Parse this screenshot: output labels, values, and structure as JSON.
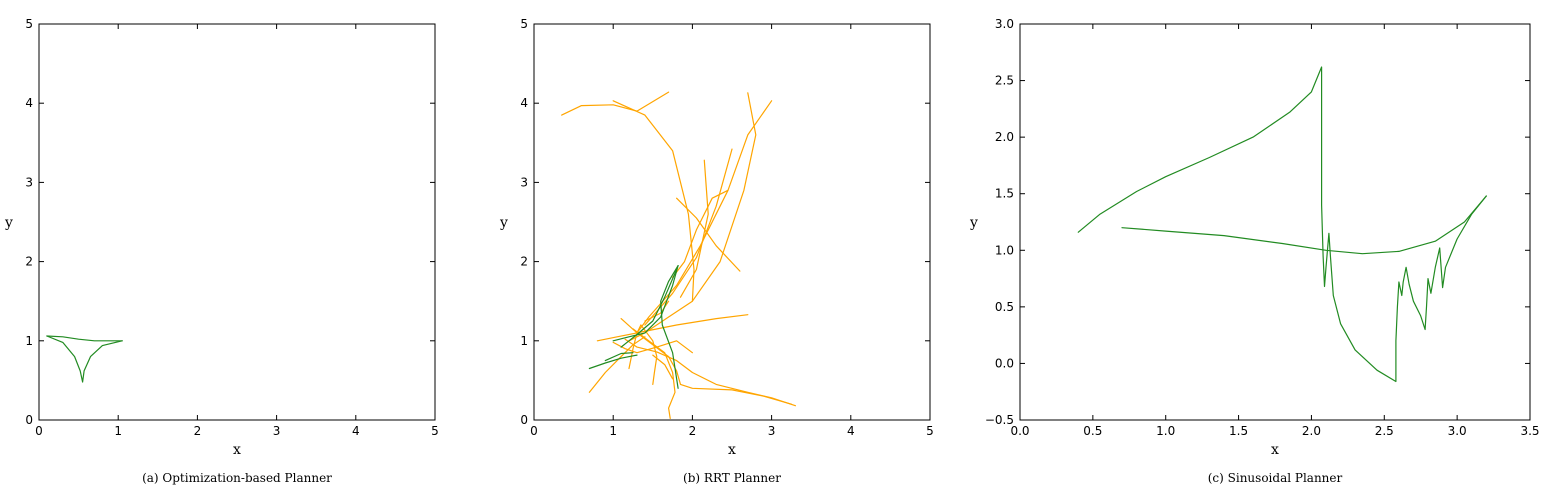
{
  "chart_data": [
    {
      "type": "line",
      "caption": "(a) Optimization-based Planner",
      "xlabel": "x",
      "ylabel": "y",
      "xlim": [
        0,
        5
      ],
      "ylim": [
        0,
        5
      ],
      "xticks": [
        0,
        1,
        2,
        3,
        4,
        5
      ],
      "yticks": [
        0,
        1,
        2,
        3,
        4,
        5
      ],
      "xtick_labels": [
        "0",
        "1",
        "2",
        "3",
        "4",
        "5"
      ],
      "ytick_labels": [
        "0",
        "1",
        "2",
        "3",
        "4",
        "5"
      ],
      "grid": false,
      "series": [
        {
          "color": "#228b22",
          "points": [
            [
              0.1,
              1.06
            ],
            [
              0.3,
              0.98
            ],
            [
              0.45,
              0.8
            ],
            [
              0.52,
              0.62
            ],
            [
              0.55,
              0.48
            ],
            [
              0.57,
              0.62
            ],
            [
              0.65,
              0.8
            ],
            [
              0.8,
              0.94
            ],
            [
              1.05,
              1.0
            ]
          ]
        },
        {
          "color": "#228b22",
          "points": [
            [
              0.1,
              1.06
            ],
            [
              0.3,
              1.05
            ],
            [
              0.5,
              1.02
            ],
            [
              0.7,
              1.0
            ],
            [
              1.05,
              1.0
            ]
          ]
        }
      ]
    },
    {
      "type": "line",
      "caption": "(b) RRT Planner",
      "xlabel": "x",
      "ylabel": "y",
      "xlim": [
        0,
        5
      ],
      "ylim": [
        0,
        5
      ],
      "xticks": [
        0,
        1,
        2,
        3,
        4,
        5
      ],
      "yticks": [
        0,
        1,
        2,
        3,
        4,
        5
      ],
      "xtick_labels": [
        "0",
        "1",
        "2",
        "3",
        "4",
        "5"
      ],
      "ytick_labels": [
        "0",
        "1",
        "2",
        "3",
        "4",
        "5"
      ],
      "grid": false,
      "series": [
        {
          "color": "#ffa500",
          "points": [
            [
              0.35,
              3.85
            ],
            [
              0.6,
              3.97
            ],
            [
              1.0,
              3.98
            ],
            [
              1.3,
              3.9
            ],
            [
              1.7,
              4.14
            ]
          ]
        },
        {
          "color": "#ffa500",
          "points": [
            [
              1.0,
              4.03
            ],
            [
              1.4,
              3.85
            ],
            [
              1.75,
              3.4
            ],
            [
              1.95,
              2.6
            ],
            [
              2.02,
              1.9
            ],
            [
              2.0,
              1.5
            ]
          ]
        },
        {
          "color": "#ffa500",
          "points": [
            [
              2.7,
              4.13
            ],
            [
              2.8,
              3.6
            ],
            [
              2.65,
              2.9
            ],
            [
              2.35,
              2.0
            ],
            [
              2.0,
              1.5
            ],
            [
              1.7,
              1.3
            ],
            [
              1.4,
              1.1
            ],
            [
              1.2,
              1.0
            ]
          ]
        },
        {
          "color": "#ffa500",
          "points": [
            [
              3.0,
              4.03
            ],
            [
              2.7,
              3.6
            ],
            [
              2.45,
              2.9
            ],
            [
              2.1,
              2.2
            ],
            [
              1.8,
              1.7
            ],
            [
              1.45,
              1.3
            ],
            [
              1.3,
              1.1
            ]
          ]
        },
        {
          "color": "#ffa500",
          "points": [
            [
              2.5,
              3.42
            ],
            [
              2.3,
              2.7
            ],
            [
              2.05,
              2.05
            ],
            [
              1.75,
              1.6
            ],
            [
              1.4,
              1.2
            ]
          ]
        },
        {
          "color": "#ffa500",
          "points": [
            [
              2.15,
              3.28
            ],
            [
              2.2,
              2.6
            ],
            [
              2.05,
              1.9
            ],
            [
              1.85,
              1.55
            ]
          ]
        },
        {
          "color": "#ffa500",
          "points": [
            [
              1.8,
              2.8
            ],
            [
              2.05,
              2.55
            ],
            [
              2.3,
              2.2
            ],
            [
              2.6,
              1.88
            ]
          ]
        },
        {
          "color": "#ffa500",
          "points": [
            [
              1.75,
              1.8
            ],
            [
              1.9,
              2.0
            ],
            [
              2.05,
              2.4
            ],
            [
              2.25,
              2.8
            ],
            [
              2.45,
              2.9
            ]
          ]
        },
        {
          "color": "#ffa500",
          "points": [
            [
              0.8,
              1.0
            ],
            [
              1.05,
              1.05
            ],
            [
              1.3,
              1.1
            ],
            [
              1.8,
              1.2
            ],
            [
              2.3,
              1.28
            ],
            [
              2.7,
              1.33
            ]
          ]
        },
        {
          "color": "#ffa500",
          "points": [
            [
              1.1,
              1.28
            ],
            [
              1.3,
              1.1
            ],
            [
              1.5,
              0.95
            ],
            [
              1.7,
              0.8
            ],
            [
              1.8,
              0.62
            ],
            [
              1.85,
              0.45
            ],
            [
              2.0,
              0.4
            ],
            [
              2.5,
              0.38
            ],
            [
              2.9,
              0.3
            ],
            [
              3.25,
              0.2
            ]
          ]
        },
        {
          "color": "#ffa500",
          "points": [
            [
              1.25,
              1.15
            ],
            [
              1.45,
              1.0
            ],
            [
              1.65,
              0.85
            ],
            [
              1.75,
              0.6
            ],
            [
              1.78,
              0.35
            ],
            [
              1.7,
              0.15
            ],
            [
              1.72,
              0.02
            ]
          ]
        },
        {
          "color": "#ffa500",
          "points": [
            [
              1.35,
              1.2
            ],
            [
              1.5,
              1.0
            ],
            [
              1.55,
              0.8
            ],
            [
              1.52,
              0.6
            ],
            [
              1.5,
              0.45
            ]
          ]
        },
        {
          "color": "#ffa500",
          "points": [
            [
              1.15,
              1.02
            ],
            [
              1.3,
              0.92
            ],
            [
              1.55,
              0.86
            ],
            [
              1.8,
              0.75
            ],
            [
              2.0,
              0.6
            ],
            [
              2.3,
              0.45
            ],
            [
              2.7,
              0.35
            ],
            [
              3.0,
              0.28
            ],
            [
              3.3,
              0.18
            ]
          ]
        },
        {
          "color": "#ffa500",
          "points": [
            [
              1.0,
              0.98
            ],
            [
              1.15,
              0.9
            ],
            [
              1.3,
              0.85
            ],
            [
              1.55,
              0.92
            ],
            [
              1.8,
              1.0
            ],
            [
              2.0,
              0.85
            ]
          ]
        },
        {
          "color": "#ffa500",
          "points": [
            [
              1.2,
              0.65
            ],
            [
              1.25,
              0.9
            ],
            [
              1.3,
              1.1
            ],
            [
              1.35,
              1.2
            ]
          ]
        },
        {
          "color": "#ffa500",
          "points": [
            [
              0.7,
              0.35
            ],
            [
              0.9,
              0.6
            ],
            [
              1.1,
              0.8
            ],
            [
              1.25,
              0.95
            ],
            [
              1.4,
              1.05
            ]
          ]
        },
        {
          "color": "#ffa500",
          "points": [
            [
              1.4,
              1.25
            ],
            [
              1.6,
              1.35
            ],
            [
              1.7,
              1.5
            ]
          ]
        },
        {
          "color": "#ffa500",
          "points": [
            [
              1.5,
              0.82
            ],
            [
              1.65,
              0.7
            ],
            [
              1.75,
              0.52
            ]
          ]
        },
        {
          "color": "#228b22",
          "points": [
            [
              0.7,
              0.65
            ],
            [
              0.9,
              0.72
            ],
            [
              1.1,
              0.78
            ],
            [
              1.3,
              0.82
            ]
          ]
        },
        {
          "color": "#228b22",
          "points": [
            [
              0.9,
              0.75
            ],
            [
              1.1,
              0.84
            ],
            [
              1.25,
              0.85
            ]
          ]
        },
        {
          "color": "#228b22",
          "points": [
            [
              1.0,
              1.0
            ],
            [
              1.2,
              1.05
            ],
            [
              1.4,
              1.1
            ],
            [
              1.6,
              1.3
            ],
            [
              1.75,
              1.7
            ],
            [
              1.82,
              1.95
            ]
          ]
        },
        {
          "color": "#228b22",
          "points": [
            [
              1.82,
              1.95
            ],
            [
              1.7,
              1.75
            ],
            [
              1.6,
              1.5
            ],
            [
              1.62,
              1.2
            ],
            [
              1.75,
              0.85
            ],
            [
              1.82,
              0.4
            ]
          ]
        },
        {
          "color": "#228b22",
          "points": [
            [
              1.1,
              0.92
            ],
            [
              1.2,
              1.0
            ],
            [
              1.3,
              1.08
            ],
            [
              1.5,
              1.25
            ],
            [
              1.65,
              1.55
            ],
            [
              1.8,
              1.9
            ]
          ]
        }
      ]
    },
    {
      "type": "line",
      "caption": "(c) Sinusoidal Planner",
      "xlabel": "x",
      "ylabel": "y",
      "xlim": [
        0.0,
        3.5
      ],
      "ylim": [
        -0.5,
        3.0
      ],
      "xticks": [
        0.0,
        0.5,
        1.0,
        1.5,
        2.0,
        2.5,
        3.0,
        3.5
      ],
      "yticks": [
        -0.5,
        0.0,
        0.5,
        1.0,
        1.5,
        2.0,
        2.5,
        3.0
      ],
      "xtick_labels": [
        "0.0",
        "0.5",
        "1.0",
        "1.5",
        "2.0",
        "2.5",
        "3.0",
        "3.5"
      ],
      "ytick_labels": [
        "−0.5",
        "0.0",
        "0.5",
        "1.0",
        "1.5",
        "2.0",
        "2.5",
        "3.0"
      ],
      "grid": false,
      "series": [
        {
          "color": "#228b22",
          "points": [
            [
              0.4,
              1.16
            ],
            [
              0.55,
              1.32
            ],
            [
              0.8,
              1.52
            ],
            [
              1.0,
              1.65
            ],
            [
              1.3,
              1.82
            ],
            [
              1.6,
              2.0
            ],
            [
              1.85,
              2.22
            ],
            [
              2.0,
              2.4
            ],
            [
              2.07,
              2.62
            ],
            [
              2.07,
              1.4
            ],
            [
              2.08,
              0.95
            ],
            [
              2.09,
              0.68
            ],
            [
              2.1,
              0.85
            ],
            [
              2.12,
              1.15
            ],
            [
              2.13,
              0.95
            ],
            [
              2.15,
              0.6
            ],
            [
              2.2,
              0.35
            ],
            [
              2.3,
              0.12
            ],
            [
              2.45,
              -0.06
            ],
            [
              2.58,
              -0.16
            ],
            [
              2.58,
              0.2
            ],
            [
              2.59,
              0.5
            ],
            [
              2.6,
              0.72
            ],
            [
              2.62,
              0.6
            ],
            [
              2.63,
              0.72
            ],
            [
              2.65,
              0.85
            ],
            [
              2.67,
              0.7
            ],
            [
              2.7,
              0.55
            ],
            [
              2.75,
              0.42
            ],
            [
              2.78,
              0.3
            ],
            [
              2.79,
              0.5
            ],
            [
              2.8,
              0.75
            ],
            [
              2.82,
              0.62
            ],
            [
              2.85,
              0.85
            ],
            [
              2.88,
              1.02
            ],
            [
              2.9,
              0.67
            ],
            [
              2.92,
              0.85
            ],
            [
              3.0,
              1.1
            ],
            [
              3.1,
              1.32
            ],
            [
              3.2,
              1.48
            ]
          ]
        },
        {
          "color": "#228b22",
          "points": [
            [
              0.7,
              1.2
            ],
            [
              1.0,
              1.17
            ],
            [
              1.4,
              1.13
            ],
            [
              1.8,
              1.06
            ],
            [
              2.1,
              1.0
            ],
            [
              2.35,
              0.97
            ],
            [
              2.6,
              0.99
            ],
            [
              2.85,
              1.08
            ],
            [
              3.05,
              1.25
            ],
            [
              3.2,
              1.48
            ]
          ]
        }
      ]
    }
  ]
}
